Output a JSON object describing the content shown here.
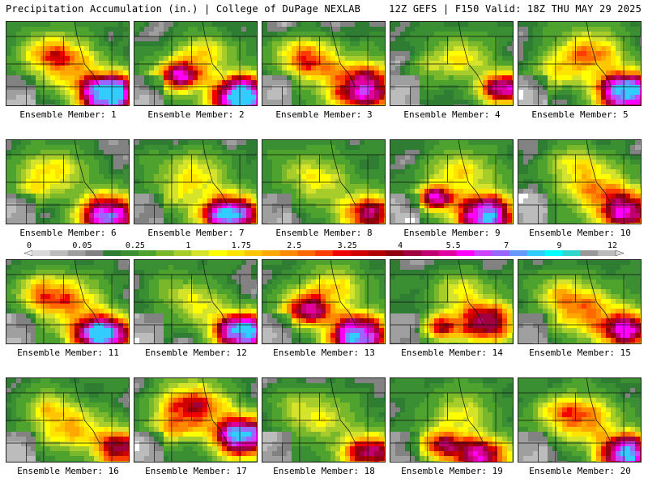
{
  "header": {
    "title_left": "Precipitation Accumulation (in.) | College of DuPage NEXLAB",
    "title_right": "12Z GEFS | F150 Valid: 18Z THU MAY 29 2025"
  },
  "member_prefix": "Ensemble Member: ",
  "members": [
    {
      "id": 1,
      "max": 7.5,
      "blobs": [
        [
          0.8,
          0.82,
          0.3,
          10
        ],
        [
          0.45,
          0.45,
          0.35,
          2.5
        ],
        [
          0.3,
          0.3,
          0.25,
          1.5
        ]
      ]
    },
    {
      "id": 2,
      "max": 7.5,
      "blobs": [
        [
          0.85,
          0.85,
          0.3,
          10
        ],
        [
          0.35,
          0.6,
          0.25,
          5
        ],
        [
          0.55,
          0.35,
          0.3,
          1.5
        ]
      ]
    },
    {
      "id": 3,
      "max": 6.0,
      "blobs": [
        [
          0.8,
          0.75,
          0.35,
          6
        ],
        [
          0.4,
          0.45,
          0.3,
          2.5
        ],
        [
          0.25,
          0.35,
          0.25,
          1.2
        ]
      ]
    },
    {
      "id": 4,
      "max": 5.5,
      "blobs": [
        [
          0.9,
          0.75,
          0.25,
          5.5
        ],
        [
          0.55,
          0.4,
          0.3,
          1.5
        ],
        [
          0.3,
          0.5,
          0.2,
          0.6
        ]
      ]
    },
    {
      "id": 5,
      "max": 7.5,
      "blobs": [
        [
          0.85,
          0.8,
          0.3,
          9
        ],
        [
          0.55,
          0.35,
          0.35,
          2.5
        ],
        [
          0.3,
          0.55,
          0.25,
          1.2
        ]
      ]
    },
    {
      "id": 6,
      "max": 7.0,
      "blobs": [
        [
          0.8,
          0.85,
          0.3,
          7
        ],
        [
          0.35,
          0.35,
          0.35,
          1.5
        ],
        [
          0.2,
          0.55,
          0.2,
          0.8
        ]
      ]
    },
    {
      "id": 7,
      "max": 7.5,
      "blobs": [
        [
          0.75,
          0.85,
          0.3,
          8
        ],
        [
          0.45,
          0.4,
          0.35,
          1.5
        ],
        [
          0.3,
          0.65,
          0.2,
          0.8
        ]
      ]
    },
    {
      "id": 8,
      "max": 5.0,
      "blobs": [
        [
          0.85,
          0.85,
          0.3,
          4.5
        ],
        [
          0.45,
          0.45,
          0.35,
          1.2
        ],
        [
          0.25,
          0.3,
          0.25,
          0.5
        ]
      ]
    },
    {
      "id": 9,
      "max": 7.5,
      "blobs": [
        [
          0.75,
          0.85,
          0.3,
          8
        ],
        [
          0.35,
          0.65,
          0.2,
          5
        ],
        [
          0.55,
          0.35,
          0.35,
          1.5
        ]
      ]
    },
    {
      "id": 10,
      "max": 5.5,
      "blobs": [
        [
          0.85,
          0.8,
          0.3,
          5.5
        ],
        [
          0.6,
          0.55,
          0.35,
          2
        ],
        [
          0.45,
          0.25,
          0.3,
          1.2
        ]
      ]
    },
    {
      "id": 11,
      "max": 7.5,
      "blobs": [
        [
          0.75,
          0.85,
          0.3,
          9
        ],
        [
          0.45,
          0.45,
          0.35,
          2.5
        ],
        [
          0.25,
          0.35,
          0.25,
          1.5
        ]
      ]
    },
    {
      "id": 12,
      "max": 7.5,
      "blobs": [
        [
          0.85,
          0.82,
          0.28,
          9
        ],
        [
          0.5,
          0.5,
          0.3,
          1.2
        ],
        [
          0.3,
          0.3,
          0.25,
          0.6
        ]
      ]
    },
    {
      "id": 13,
      "max": 7.5,
      "blobs": [
        [
          0.75,
          0.85,
          0.3,
          8
        ],
        [
          0.35,
          0.55,
          0.25,
          5
        ],
        [
          0.55,
          0.3,
          0.35,
          1.5
        ]
      ]
    },
    {
      "id": 14,
      "max": 5.5,
      "blobs": [
        [
          0.75,
          0.7,
          0.3,
          5
        ],
        [
          0.4,
          0.75,
          0.2,
          3.5
        ],
        [
          0.55,
          0.35,
          0.3,
          1.2
        ]
      ]
    },
    {
      "id": 15,
      "max": 5.5,
      "blobs": [
        [
          0.85,
          0.8,
          0.3,
          5.5
        ],
        [
          0.5,
          0.55,
          0.35,
          2.5
        ],
        [
          0.3,
          0.35,
          0.25,
          1.2
        ]
      ]
    },
    {
      "id": 16,
      "max": 5.0,
      "blobs": [
        [
          0.9,
          0.8,
          0.28,
          4.5
        ],
        [
          0.5,
          0.55,
          0.35,
          2
        ],
        [
          0.3,
          0.3,
          0.25,
          1.2
        ]
      ]
    },
    {
      "id": 17,
      "max": 7.5,
      "blobs": [
        [
          0.85,
          0.65,
          0.3,
          8
        ],
        [
          0.45,
          0.3,
          0.35,
          3.5
        ],
        [
          0.3,
          0.55,
          0.25,
          1.5
        ]
      ]
    },
    {
      "id": 18,
      "max": 5.0,
      "blobs": [
        [
          0.85,
          0.85,
          0.3,
          4.5
        ],
        [
          0.45,
          0.45,
          0.35,
          1.2
        ],
        [
          0.25,
          0.3,
          0.25,
          0.5
        ]
      ]
    },
    {
      "id": 19,
      "max": 6.0,
      "blobs": [
        [
          0.7,
          0.9,
          0.3,
          5.5
        ],
        [
          0.4,
          0.75,
          0.25,
          3.5
        ],
        [
          0.55,
          0.4,
          0.35,
          1.2
        ]
      ]
    },
    {
      "id": 20,
      "max": 7.5,
      "blobs": [
        [
          0.85,
          0.85,
          0.28,
          8
        ],
        [
          0.5,
          0.45,
          0.35,
          2.5
        ],
        [
          0.3,
          0.35,
          0.25,
          1.2
        ]
      ]
    }
  ],
  "colorbar": {
    "labels": [
      "0",
      "0.05",
      "0.25",
      "1",
      "1.75",
      "2.5",
      "3.25",
      "4",
      "5.5",
      "7",
      "9",
      "12"
    ],
    "levels": [
      0,
      0.01,
      0.03,
      0.05,
      0.1,
      0.15,
      0.25,
      0.5,
      0.75,
      1,
      1.25,
      1.5,
      1.75,
      2,
      2.25,
      2.5,
      2.75,
      3,
      3.25,
      3.5,
      3.75,
      4,
      4.5,
      5,
      5.5,
      6,
      6.5,
      7,
      7.5,
      8,
      9,
      10,
      11,
      12
    ],
    "colors": [
      "#d9d9d9",
      "#bcbcbc",
      "#9f9f9f",
      "#828282",
      "#2e7d32",
      "#3a8f32",
      "#4da32e",
      "#78b82a",
      "#a7cd2a",
      "#d6e32b",
      "#ffff00",
      "#ffe400",
      "#ffc600",
      "#ffa800",
      "#ff8a00",
      "#ff6a00",
      "#ff3c00",
      "#f00000",
      "#d00000",
      "#b00000",
      "#900010",
      "#a00040",
      "#c00070",
      "#e000a0",
      "#ff00ff",
      "#cc44ff",
      "#9966ff",
      "#6699ff",
      "#33ccff",
      "#00ffff",
      "#33d6cc",
      "#999999",
      "#bbbbbb"
    ]
  }
}
